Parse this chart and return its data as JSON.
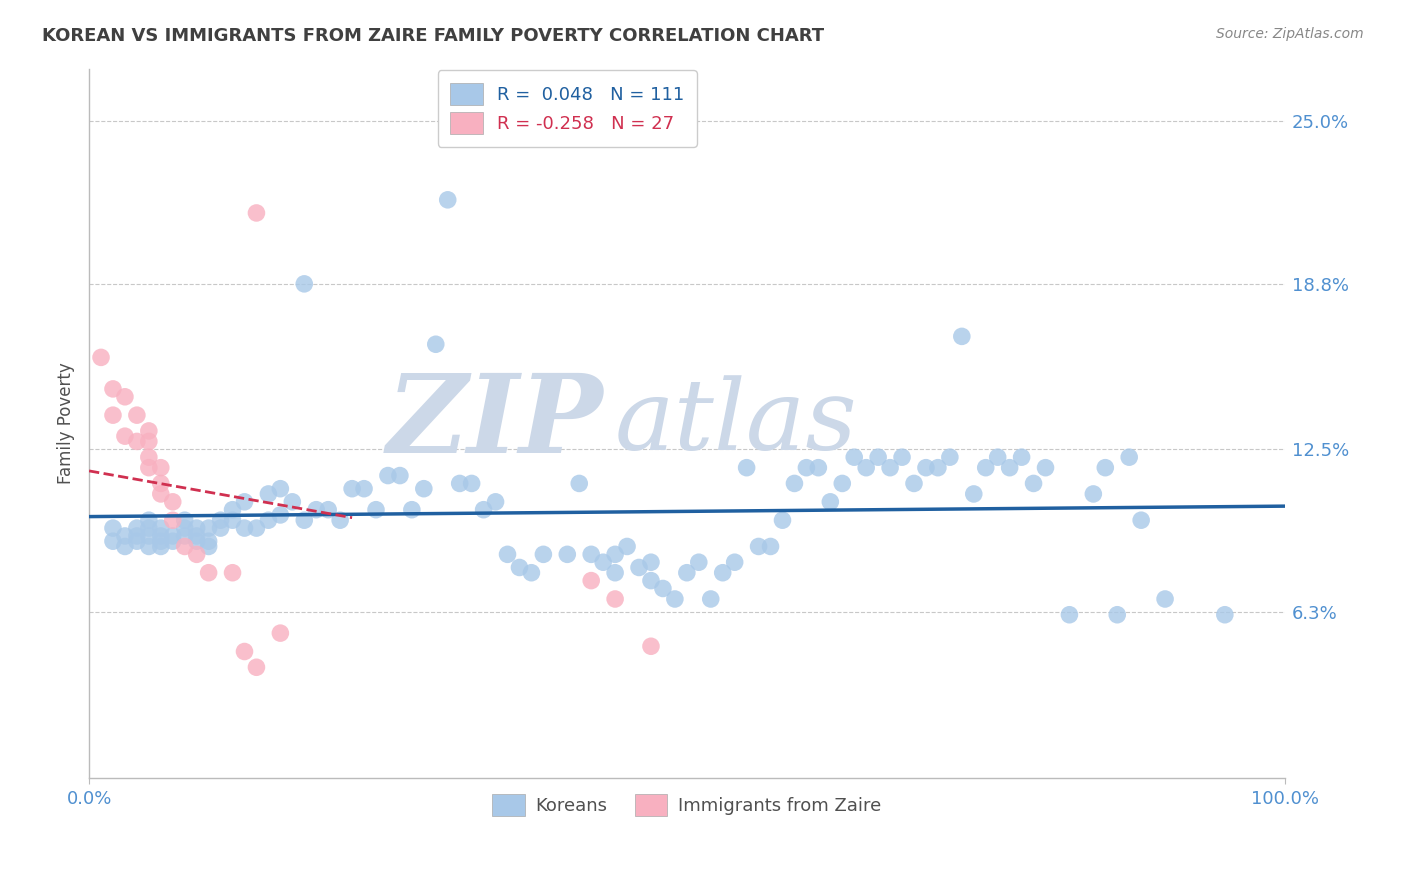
{
  "title": "KOREAN VS IMMIGRANTS FROM ZAIRE FAMILY POVERTY CORRELATION CHART",
  "source_text": "Source: ZipAtlas.com",
  "ylabel": "Family Poverty",
  "y_tick_labels": [
    "6.3%",
    "12.5%",
    "18.8%",
    "25.0%"
  ],
  "y_tick_values": [
    0.063,
    0.125,
    0.188,
    0.25
  ],
  "xlim": [
    0.0,
    1.0
  ],
  "ylim": [
    0.0,
    0.27
  ],
  "korean_color": "#a8c8e8",
  "zaire_color": "#f8b0c0",
  "korean_line_color": "#2060a0",
  "zaire_line_color": "#d03050",
  "legend_korean_label": "Koreans",
  "legend_zaire_label": "Immigrants from Zaire",
  "r_korean": 0.048,
  "n_korean": 111,
  "r_zaire": -0.258,
  "n_zaire": 27,
  "background_color": "#ffffff",
  "grid_color": "#c8c8c8",
  "title_color": "#404040",
  "axis_label_color": "#505050",
  "tick_label_color": "#5090d0",
  "korean_x": [
    0.02,
    0.02,
    0.03,
    0.03,
    0.04,
    0.04,
    0.04,
    0.05,
    0.05,
    0.05,
    0.05,
    0.06,
    0.06,
    0.06,
    0.06,
    0.07,
    0.07,
    0.08,
    0.08,
    0.08,
    0.09,
    0.09,
    0.09,
    0.1,
    0.1,
    0.1,
    0.11,
    0.11,
    0.12,
    0.12,
    0.13,
    0.13,
    0.14,
    0.15,
    0.15,
    0.16,
    0.16,
    0.17,
    0.18,
    0.18,
    0.19,
    0.2,
    0.21,
    0.22,
    0.23,
    0.24,
    0.25,
    0.26,
    0.27,
    0.28,
    0.29,
    0.3,
    0.31,
    0.32,
    0.33,
    0.34,
    0.35,
    0.36,
    0.37,
    0.38,
    0.4,
    0.41,
    0.42,
    0.43,
    0.44,
    0.44,
    0.45,
    0.46,
    0.47,
    0.47,
    0.48,
    0.49,
    0.5,
    0.51,
    0.52,
    0.53,
    0.54,
    0.55,
    0.56,
    0.57,
    0.58,
    0.59,
    0.6,
    0.61,
    0.62,
    0.63,
    0.64,
    0.65,
    0.66,
    0.67,
    0.68,
    0.69,
    0.7,
    0.71,
    0.72,
    0.73,
    0.74,
    0.75,
    0.76,
    0.77,
    0.78,
    0.79,
    0.8,
    0.82,
    0.84,
    0.85,
    0.86,
    0.87,
    0.88,
    0.9,
    0.95
  ],
  "korean_y": [
    0.095,
    0.09,
    0.088,
    0.092,
    0.09,
    0.095,
    0.092,
    0.088,
    0.092,
    0.095,
    0.098,
    0.088,
    0.09,
    0.092,
    0.095,
    0.09,
    0.092,
    0.092,
    0.095,
    0.098,
    0.09,
    0.092,
    0.095,
    0.088,
    0.09,
    0.095,
    0.095,
    0.098,
    0.098,
    0.102,
    0.095,
    0.105,
    0.095,
    0.098,
    0.108,
    0.1,
    0.11,
    0.105,
    0.188,
    0.098,
    0.102,
    0.102,
    0.098,
    0.11,
    0.11,
    0.102,
    0.115,
    0.115,
    0.102,
    0.11,
    0.165,
    0.22,
    0.112,
    0.112,
    0.102,
    0.105,
    0.085,
    0.08,
    0.078,
    0.085,
    0.085,
    0.112,
    0.085,
    0.082,
    0.078,
    0.085,
    0.088,
    0.08,
    0.075,
    0.082,
    0.072,
    0.068,
    0.078,
    0.082,
    0.068,
    0.078,
    0.082,
    0.118,
    0.088,
    0.088,
    0.098,
    0.112,
    0.118,
    0.118,
    0.105,
    0.112,
    0.122,
    0.118,
    0.122,
    0.118,
    0.122,
    0.112,
    0.118,
    0.118,
    0.122,
    0.168,
    0.108,
    0.118,
    0.122,
    0.118,
    0.122,
    0.112,
    0.118,
    0.062,
    0.108,
    0.118,
    0.062,
    0.122,
    0.098,
    0.068,
    0.062
  ],
  "zaire_x": [
    0.01,
    0.02,
    0.02,
    0.03,
    0.03,
    0.04,
    0.04,
    0.05,
    0.05,
    0.05,
    0.05,
    0.06,
    0.06,
    0.06,
    0.07,
    0.07,
    0.08,
    0.09,
    0.1,
    0.12,
    0.13,
    0.14,
    0.16,
    0.42,
    0.44,
    0.47,
    0.14
  ],
  "zaire_y": [
    0.16,
    0.148,
    0.138,
    0.145,
    0.13,
    0.138,
    0.128,
    0.132,
    0.128,
    0.122,
    0.118,
    0.118,
    0.112,
    0.108,
    0.105,
    0.098,
    0.088,
    0.085,
    0.078,
    0.078,
    0.048,
    0.042,
    0.055,
    0.075,
    0.068,
    0.05,
    0.215
  ],
  "zaire_trend_x": [
    0.0,
    0.22
  ],
  "korean_trend_x": [
    0.0,
    1.0
  ]
}
